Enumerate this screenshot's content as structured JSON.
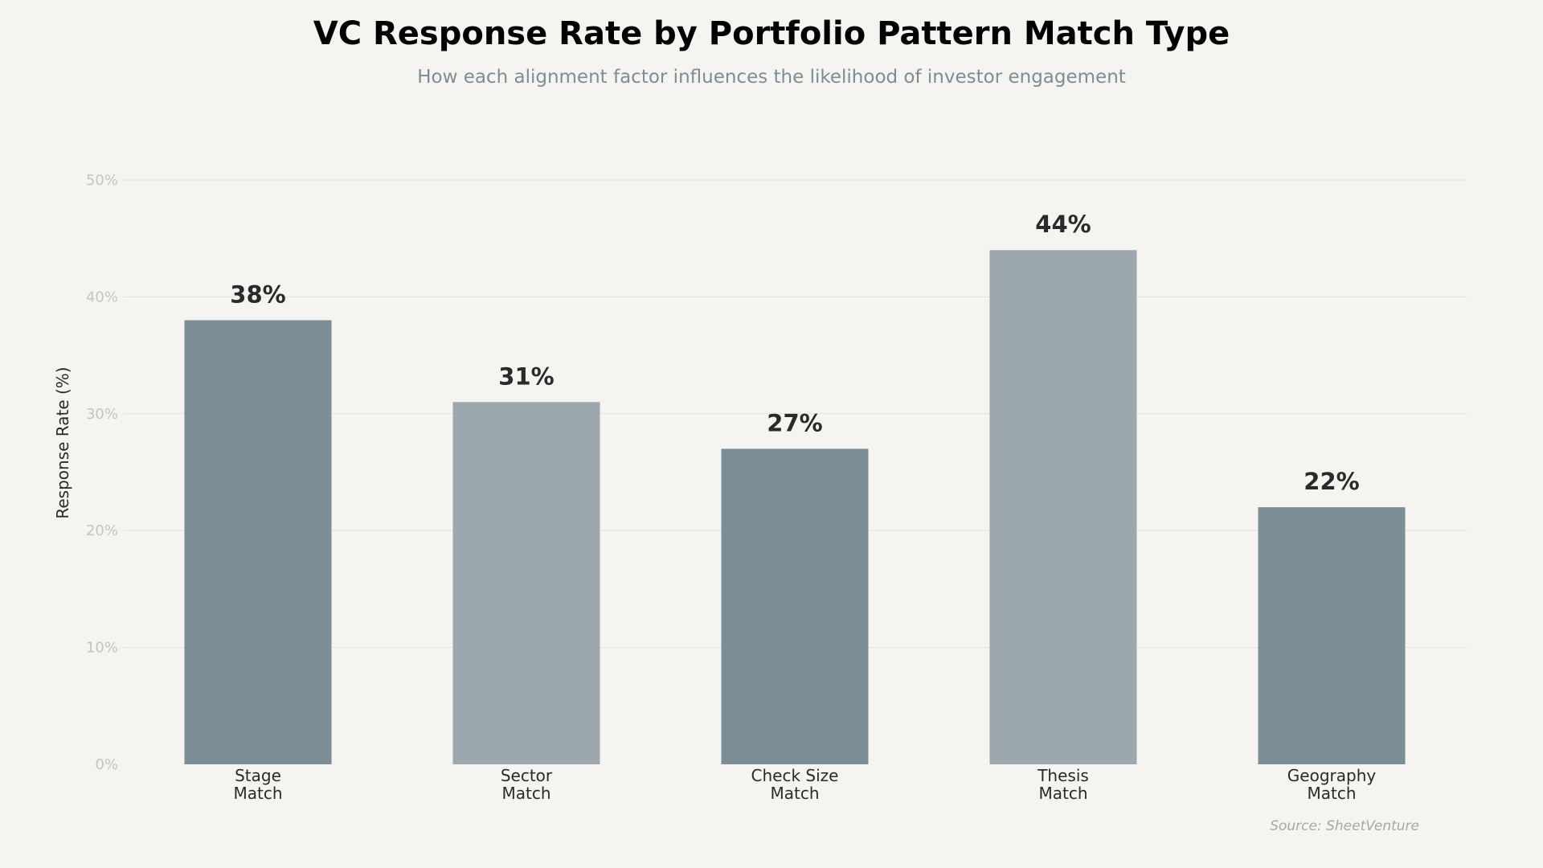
{
  "colors": {
    "background": "#f5f4f0",
    "bar_dark": "#7b8e95",
    "bar_light": "#9ca8ad"
  },
  "chart_data": {
    "type": "bar",
    "title": "VC Response Rate by Portfolio Pattern Match Type",
    "subtitle": "How each alignment factor influences the likelihood of investor engagement",
    "xlabel": "",
    "ylabel": "Response Rate (%)",
    "ylim": [
      0,
      50
    ],
    "yticks": [
      0,
      10,
      20,
      30,
      40,
      50
    ],
    "ytick_labels": [
      "0%",
      "10%",
      "20%",
      "30%",
      "40%",
      "50%"
    ],
    "categories": [
      [
        "Stage",
        "Match"
      ],
      [
        "Sector",
        "Match"
      ],
      [
        "Check Size",
        "Match"
      ],
      [
        "Thesis",
        "Match"
      ],
      [
        "Geography",
        "Match"
      ]
    ],
    "values": [
      38,
      31,
      27,
      44,
      22
    ],
    "value_labels": [
      "38%",
      "31%",
      "27%",
      "44%",
      "22%"
    ],
    "bar_colors": [
      "#7b8e95",
      "#9ca8ad",
      "#7b8e95",
      "#9ca8ad",
      "#7b8e95"
    ],
    "grid": true,
    "legend": "none",
    "source": "Source: SheetVenture"
  }
}
